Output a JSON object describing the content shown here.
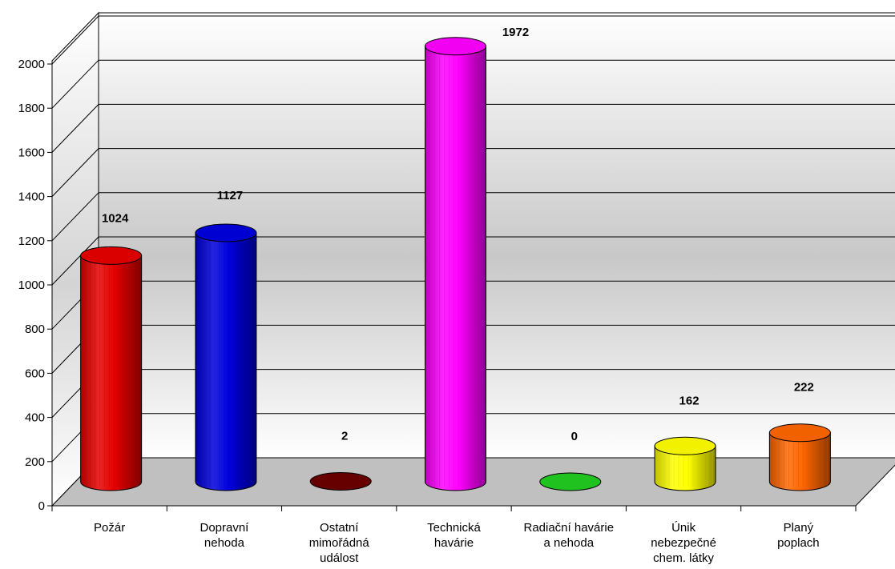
{
  "chart_data": {
    "type": "bar",
    "style": "3d-cylinder",
    "categories": [
      [
        "Požár"
      ],
      [
        "Dopravní",
        "nehoda"
      ],
      [
        "Ostatní",
        "mimořádná",
        "událost"
      ],
      [
        "Technická",
        "havárie"
      ],
      [
        "Radiační havárie",
        "a nehoda"
      ],
      [
        "Únik",
        "nebezpečné",
        "chem. látky"
      ],
      [
        "Planý",
        "poplach"
      ]
    ],
    "values": [
      1024,
      1127,
      2,
      1972,
      0,
      162,
      222
    ],
    "data_labels": [
      "1024",
      "1127",
      "2",
      "1972",
      "0",
      "162",
      "222"
    ],
    "colors": [
      "#e60000",
      "#0000dd",
      "#6b0000",
      "#ff00ff",
      "#22cc22",
      "#ffff00",
      "#ff6600"
    ],
    "ylim": [
      0,
      2000
    ],
    "yticks": [
      "0",
      "200",
      "400",
      "600",
      "800",
      "1000",
      "1200",
      "1400",
      "1600",
      "1800",
      "2000"
    ],
    "grid": true,
    "legend": "none",
    "title": "",
    "xlabel": "",
    "ylabel": ""
  }
}
